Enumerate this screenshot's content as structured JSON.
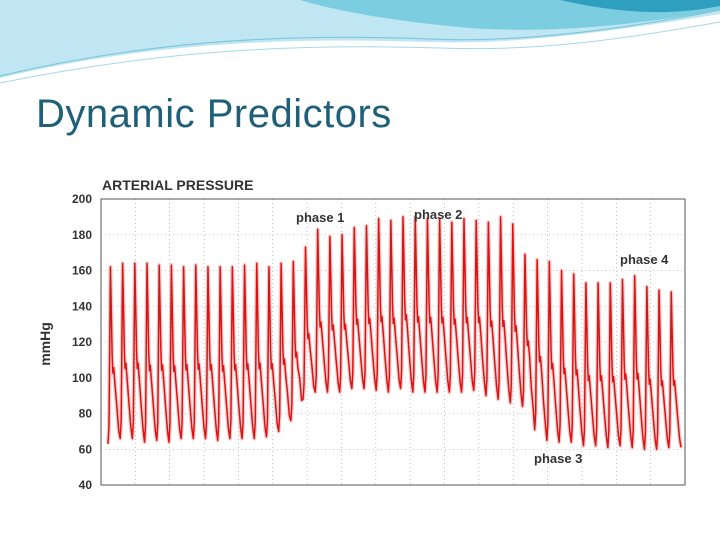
{
  "slide": {
    "title": "Dynamic Predictors"
  },
  "colors": {
    "banner_light": "#bfe6f2",
    "banner_mid": "#7ccde0",
    "banner_dark": "#2f9fc0",
    "title": "#1f5f78",
    "trace": "#d91414",
    "trace_glow": "#f3a0a0",
    "grid": "#9a9a9a"
  },
  "chart_data": {
    "type": "line",
    "title": "ARTERIAL PRESSURE",
    "ylabel": "mmHg",
    "xlabel": "",
    "ylim": [
      40,
      200
    ],
    "yticks": [
      200,
      180,
      160,
      140,
      120,
      100,
      80,
      60,
      40
    ],
    "grid": true,
    "annotations": [
      {
        "text": "phase 1",
        "phase": 1
      },
      {
        "text": "phase 2",
        "phase": 2
      },
      {
        "text": "phase 3",
        "phase": 3
      },
      {
        "text": "phase 4",
        "phase": 4
      }
    ],
    "series": [
      {
        "peaks": [
          162,
          164,
          164,
          164,
          163,
          163,
          162,
          163,
          162,
          162,
          162,
          163,
          164,
          162,
          164,
          165,
          173,
          183,
          179,
          180,
          184,
          185,
          189,
          188,
          190,
          190,
          189,
          189,
          187,
          189,
          188,
          187,
          190,
          186,
          169,
          166,
          165,
          160,
          158,
          153,
          153,
          153,
          155,
          157,
          151,
          149,
          148
        ],
        "troughs": [
          63,
          66,
          66,
          64,
          65,
          64,
          66,
          66,
          66,
          65,
          66,
          66,
          66,
          67,
          70,
          76,
          88,
          92,
          92,
          92,
          94,
          94,
          93,
          92,
          94,
          92,
          92,
          92,
          92,
          92,
          93,
          90,
          88,
          86,
          84,
          71,
          65,
          64,
          64,
          62,
          62,
          61,
          62,
          61,
          60,
          60,
          61
        ]
      }
    ]
  }
}
